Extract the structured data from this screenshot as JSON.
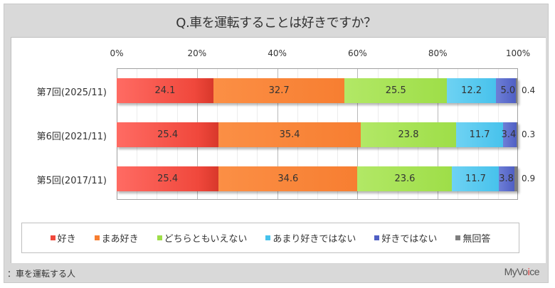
{
  "title": "Q.車を運転することは好きですか？",
  "footnote": "：車を運転する人",
  "logo": {
    "prefix": "MyVo",
    "accent": "i",
    "suffix": "ce"
  },
  "chart_data": {
    "type": "bar",
    "orientation": "horizontal",
    "stacked": true,
    "title": "Q.車を運転することは好きですか？",
    "xlabel": "",
    "ylabel": "",
    "xlim": [
      0,
      100
    ],
    "x_ticks": [
      "0%",
      "20%",
      "40%",
      "60%",
      "80%",
      "100%"
    ],
    "grid": true,
    "legend_position": "bottom",
    "categories": [
      "第7回(2025/11)",
      "第6回(2021/11)",
      "第5回(2017/11)"
    ],
    "series": [
      {
        "name": "好き",
        "color": "#f0483c",
        "values": [
          24.1,
          25.4,
          25.4
        ]
      },
      {
        "name": "まあ好き",
        "color": "#f77e31",
        "values": [
          32.7,
          35.4,
          34.6
        ]
      },
      {
        "name": "どちらともいえない",
        "color": "#9ede48",
        "values": [
          25.5,
          23.8,
          23.6
        ]
      },
      {
        "name": "あまり好きではない",
        "color": "#47c2ec",
        "values": [
          12.2,
          11.7,
          11.7
        ]
      },
      {
        "name": "好きではない",
        "color": "#4f5fc4",
        "values": [
          5.0,
          3.4,
          3.8
        ]
      },
      {
        "name": "無回答",
        "color": "#7f7f7f",
        "values": [
          0.4,
          0.3,
          0.9
        ]
      }
    ],
    "labels": [
      [
        "24.1",
        "32.7",
        "25.5",
        "12.2",
        "5.0",
        "0.4"
      ],
      [
        "25.4",
        "35.4",
        "23.8",
        "11.7",
        "3.4",
        "0.3"
      ],
      [
        "25.4",
        "34.6",
        "23.6",
        "11.7",
        "3.8",
        "0.9"
      ]
    ],
    "footnote": "：車を運転する人",
    "source_logo": "MyVoice"
  }
}
